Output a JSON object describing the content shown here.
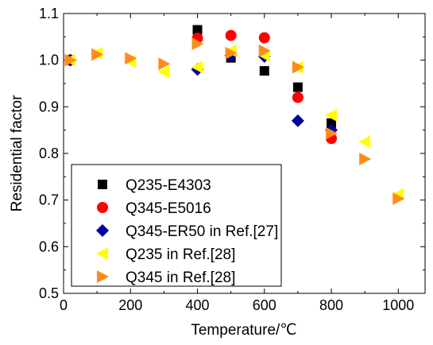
{
  "chart_data": {
    "type": "scatter",
    "title": "",
    "xlabel": "Temperature/℃",
    "ylabel": "Residential factor",
    "xlim": [
      0,
      1080
    ],
    "ylim": [
      0.5,
      1.1
    ],
    "xticks": [
      "0",
      "200",
      "400",
      "600",
      "800",
      "1000"
    ],
    "yticks": [
      "0.5",
      "0.6",
      "0.7",
      "0.8",
      "0.9",
      "1.0",
      "1.1"
    ],
    "grid": false,
    "legend_position": "bottom-left",
    "series": [
      {
        "name": "Q235-E4303",
        "marker": "square",
        "color": "#000000",
        "points": [
          [
            20,
            1.0
          ],
          [
            400,
            1.065
          ],
          [
            500,
            1.005
          ],
          [
            600,
            0.977
          ],
          [
            700,
            0.942
          ],
          [
            800,
            0.865
          ]
        ]
      },
      {
        "name": "Q345-E5016",
        "marker": "circle",
        "color": "#ff0000",
        "points": [
          [
            20,
            1.0
          ],
          [
            400,
            1.047
          ],
          [
            500,
            1.053
          ],
          [
            600,
            1.048
          ],
          [
            700,
            0.92
          ],
          [
            800,
            0.832
          ]
        ]
      },
      {
        "name": "Q345-ER50 in Ref.[27]",
        "marker": "diamond",
        "color": "#0000a0",
        "points": [
          [
            20,
            1.0
          ],
          [
            400,
            0.98
          ],
          [
            500,
            1.01
          ],
          [
            600,
            1.008
          ],
          [
            700,
            0.87
          ],
          [
            800,
            0.85
          ]
        ]
      },
      {
        "name": "Q235 in Ref.[28]",
        "marker": "triangle-left",
        "color": "#ffff00",
        "points": [
          [
            20,
            1.0
          ],
          [
            100,
            1.015
          ],
          [
            200,
            0.997
          ],
          [
            300,
            0.975
          ],
          [
            400,
            0.985
          ],
          [
            500,
            1.02
          ],
          [
            600,
            1.01
          ],
          [
            700,
            0.985
          ],
          [
            800,
            0.882
          ],
          [
            900,
            0.825
          ],
          [
            1000,
            0.712
          ]
        ]
      },
      {
        "name": "Q345 in Ref.[28]",
        "marker": "triangle-right",
        "color": "#ff8c1a",
        "points": [
          [
            20,
            1.0
          ],
          [
            100,
            1.012
          ],
          [
            200,
            1.004
          ],
          [
            300,
            0.992
          ],
          [
            400,
            1.035
          ],
          [
            500,
            1.015
          ],
          [
            600,
            1.02
          ],
          [
            700,
            0.985
          ],
          [
            800,
            0.843
          ],
          [
            900,
            0.788
          ],
          [
            1000,
            0.703
          ]
        ]
      }
    ]
  }
}
